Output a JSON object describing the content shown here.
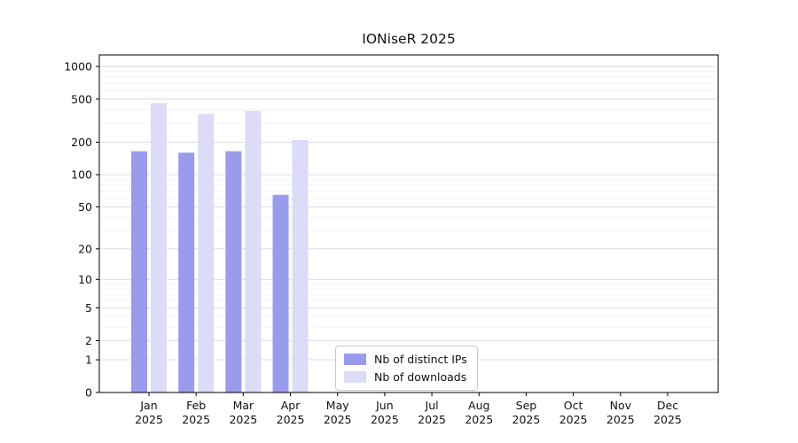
{
  "chart_data": {
    "type": "bar",
    "title": "IONiseR 2025",
    "yscale": "log1p",
    "ylim": [
      0,
      1270
    ],
    "grid": "horizontal",
    "yticks": [
      0,
      1,
      2,
      5,
      10,
      20,
      50,
      100,
      200,
      500,
      1000
    ],
    "categories": [
      "Jan 2025",
      "Feb 2025",
      "Mar 2025",
      "Apr 2025",
      "May 2025",
      "Jun 2025",
      "Jul 2025",
      "Aug 2025",
      "Sep 2025",
      "Oct 2025",
      "Nov 2025",
      "Dec 2025"
    ],
    "series": [
      {
        "name": "Nb of distinct IPs",
        "color": "#9b9bee",
        "values": [
          165,
          160,
          165,
          65,
          0,
          0,
          0,
          0,
          0,
          0,
          0,
          0
        ]
      },
      {
        "name": "Nb of downloads",
        "color": "#dcdcf8",
        "values": [
          460,
          365,
          390,
          210,
          0,
          0,
          0,
          0,
          0,
          0,
          0,
          0
        ]
      }
    ],
    "legend_position": "lower-center"
  }
}
